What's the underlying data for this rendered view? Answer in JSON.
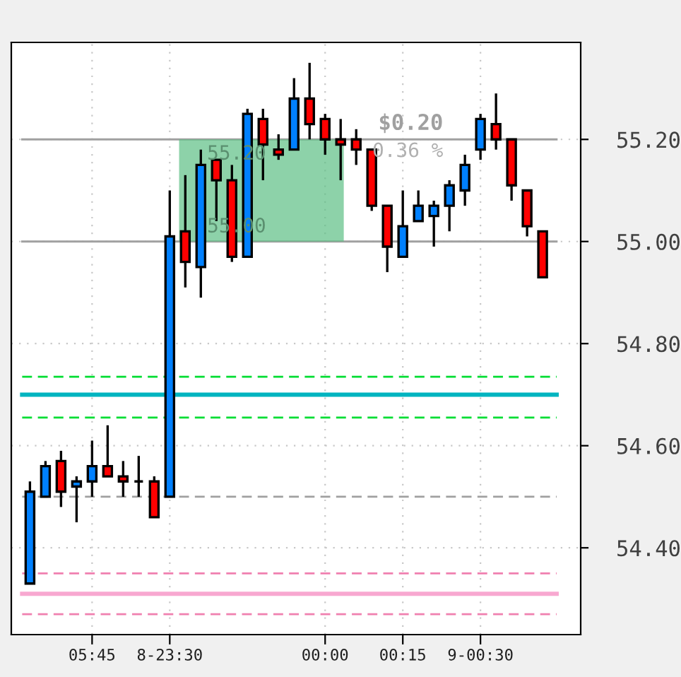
{
  "chart_data": {
    "type": "candlestick",
    "categories": [
      null,
      null,
      null,
      null,
      "05:45",
      null,
      null,
      null,
      null,
      "8-23:30",
      null,
      null,
      null,
      null,
      null,
      null,
      null,
      null,
      null,
      "00:00",
      null,
      null,
      null,
      null,
      "00:15",
      null,
      null,
      null,
      null,
      "9-00:30",
      null,
      null,
      null,
      null
    ],
    "ohlc": [
      [
        54.33,
        54.53,
        54.33,
        54.51
      ],
      [
        54.5,
        54.57,
        54.5,
        54.56
      ],
      [
        54.57,
        54.59,
        54.48,
        54.51
      ],
      [
        54.52,
        54.54,
        54.45,
        54.53
      ],
      [
        54.53,
        54.61,
        54.5,
        54.56
      ],
      [
        54.56,
        54.64,
        54.54,
        54.54
      ],
      [
        54.54,
        54.57,
        54.5,
        54.53
      ],
      [
        54.53,
        54.58,
        54.5,
        54.53
      ],
      [
        54.53,
        54.54,
        54.46,
        54.46
      ],
      [
        54.5,
        55.1,
        54.5,
        55.01
      ],
      [
        55.02,
        55.13,
        54.91,
        54.96
      ],
      [
        54.95,
        55.18,
        54.89,
        55.15
      ],
      [
        55.16,
        55.16,
        55.04,
        55.12
      ],
      [
        55.12,
        55.15,
        54.96,
        54.97
      ],
      [
        54.97,
        55.26,
        54.97,
        55.25
      ],
      [
        55.24,
        55.26,
        55.12,
        55.19
      ],
      [
        55.18,
        55.21,
        55.16,
        55.17
      ],
      [
        55.18,
        55.32,
        55.18,
        55.28
      ],
      [
        55.28,
        55.35,
        55.2,
        55.23
      ],
      [
        55.24,
        55.25,
        55.17,
        55.2
      ],
      [
        55.2,
        55.24,
        55.12,
        55.19
      ],
      [
        55.2,
        55.22,
        55.15,
        55.18
      ],
      [
        55.18,
        55.18,
        55.06,
        55.07
      ],
      [
        55.07,
        55.07,
        54.94,
        54.99
      ],
      [
        54.97,
        55.1,
        54.97,
        55.03
      ],
      [
        55.04,
        55.1,
        55.04,
        55.07
      ],
      [
        55.05,
        55.08,
        54.99,
        55.07
      ],
      [
        55.07,
        55.12,
        55.02,
        55.11
      ],
      [
        55.1,
        55.17,
        55.07,
        55.15
      ],
      [
        55.18,
        55.25,
        55.16,
        55.24
      ],
      [
        55.23,
        55.29,
        55.18,
        55.2
      ],
      [
        55.2,
        55.2,
        55.08,
        55.11
      ],
      [
        55.1,
        55.1,
        55.01,
        55.03
      ],
      [
        55.02,
        55.02,
        54.93,
        54.93
      ]
    ],
    "colors": [
      "#0080ff",
      "#0080ff",
      "#ff0000",
      "#0080ff",
      "#0080ff",
      "#ff0000",
      "#ff0000",
      "#000000",
      "#ff0000",
      "#0080ff",
      "#ff0000",
      "#0080ff",
      "#ff0000",
      "#ff0000",
      "#0080ff",
      "#ff0000",
      "#ff0000",
      "#0080ff",
      "#ff0000",
      "#ff0000",
      "#ff0000",
      "#ff0000",
      "#ff0000",
      "#ff0000",
      "#0080ff",
      "#0080ff",
      "#0080ff",
      "#0080ff",
      "#0080ff",
      "#0080ff",
      "#ff0000",
      "#ff0000",
      "#ff0000",
      "#ff0000"
    ],
    "ylim": [
      54.23,
      55.39
    ],
    "yticks": [
      {
        "value": 54.4,
        "label": "54.40"
      },
      {
        "value": 54.6,
        "label": "54.60"
      },
      {
        "value": 54.8,
        "label": "54.80"
      },
      {
        "value": 55.0,
        "label": "55.00"
      },
      {
        "value": 55.2,
        "label": "55.20"
      }
    ],
    "grid": true,
    "ref_lines": [
      {
        "axis": "y",
        "value": 54.735,
        "color": "#00dd33",
        "line_style": "dashed"
      },
      {
        "axis": "y",
        "value": 54.7,
        "color": "#00b4c0",
        "line_style": "solid"
      },
      {
        "axis": "y",
        "value": 54.655,
        "color": "#00dd33",
        "line_style": "dashed"
      },
      {
        "axis": "y",
        "value": 54.5,
        "color": "#a0a0a0",
        "line_style": "dashed"
      },
      {
        "axis": "y",
        "value": 54.35,
        "color": "#f080b0",
        "line_style": "dashed"
      },
      {
        "axis": "y",
        "value": 54.31,
        "color": "#f8a8d0",
        "line_style": "solid"
      },
      {
        "axis": "y",
        "value": 54.27,
        "color": "#f080b0",
        "line_style": "dashed"
      },
      {
        "axis": "y",
        "value": 55.2,
        "color": "#a0a0a0",
        "line_style": "solid"
      },
      {
        "axis": "y",
        "value": 55.0,
        "color": "#a0a0a0",
        "line_style": "solid"
      }
    ],
    "bands": [
      {
        "axis": "y",
        "from": 55.0,
        "to": 55.2,
        "color": "#5cbf85"
      }
    ],
    "annotations": [
      {
        "text": "55.20",
        "y": 55.19
      },
      {
        "text": "55.00",
        "y": 55.01
      },
      {
        "text": "$0.20",
        "y": 55.21
      },
      {
        "text": "0.36 %",
        "y": 55.195
      }
    ]
  }
}
